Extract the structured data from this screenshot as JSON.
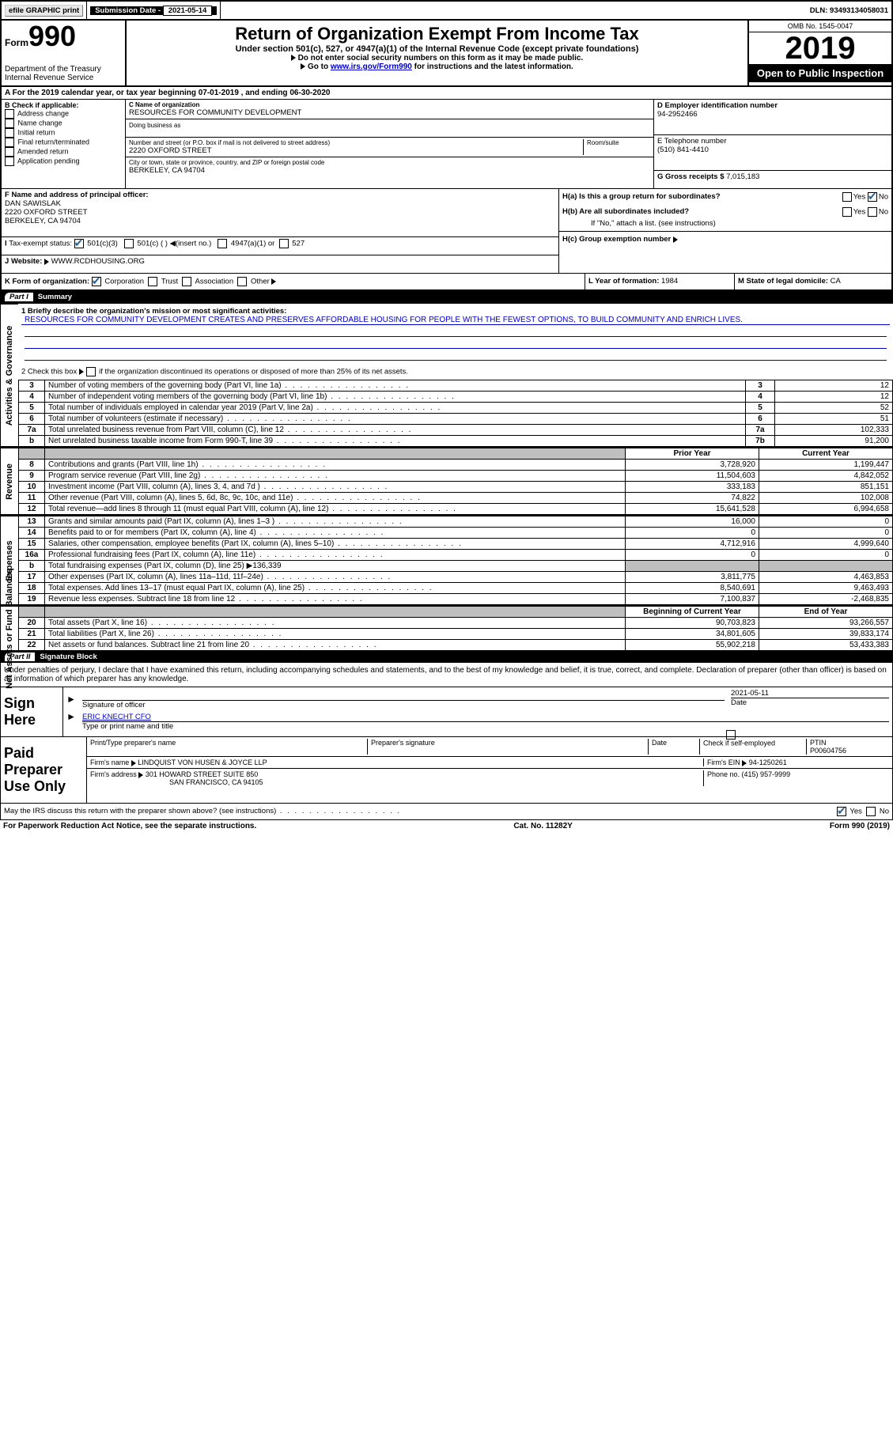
{
  "topbar": {
    "efile": "efile GRAPHIC print",
    "sub_label": "Submission Date - ",
    "sub_date": "2021-05-14",
    "dln": "DLN: 93493134058031"
  },
  "header": {
    "form_prefix": "Form",
    "form_num": "990",
    "dept": "Department of the Treasury\nInternal Revenue Service",
    "title": "Return of Organization Exempt From Income Tax",
    "subtitle": "Under section 501(c), 527, or 4947(a)(1) of the Internal Revenue Code (except private foundations)",
    "inst1": "Do not enter social security numbers on this form as it may be made public.",
    "inst2_a": "Go to ",
    "inst2_link": "www.irs.gov/Form990",
    "inst2_b": " for instructions and the latest information.",
    "omb": "OMB No. 1545-0047",
    "year": "2019",
    "open": "Open to Public Inspection"
  },
  "rowA": "A For the 2019 calendar year, or tax year beginning 07-01-2019    , and ending 06-30-2020",
  "colB": {
    "label": "B Check if applicable:",
    "opts": [
      "Address change",
      "Name change",
      "Initial return",
      "Final return/terminated",
      "Amended return",
      "Application pending"
    ]
  },
  "colC": {
    "name_label": "C Name of organization",
    "name": "RESOURCES FOR COMMUNITY DEVELOPMENT",
    "dba_label": "Doing business as",
    "addr_label": "Number and street (or P.O. box if mail is not delivered to street address)",
    "room_label": "Room/suite",
    "addr": "2220 OXFORD STREET",
    "city_label": "City or town, state or province, country, and ZIP or foreign postal code",
    "city": "BERKELEY, CA  94704"
  },
  "colD": {
    "label": "D Employer identification number",
    "val": "94-2952466"
  },
  "colE": {
    "label": "E Telephone number",
    "val": "(510) 841-4410"
  },
  "colG": {
    "label": "G Gross receipts $ ",
    "val": "7,015,183"
  },
  "rowF": {
    "label": "F  Name and address of principal officer:",
    "name": "DAN SAWISLAK",
    "addr1": "2220 OXFORD STREET",
    "addr2": "BERKELEY, CA  94704"
  },
  "rowH": {
    "a": "H(a)  Is this a group return for subordinates?",
    "b": "H(b)  Are all subordinates included?",
    "b_note": "If \"No,\" attach a list. (see instructions)",
    "c": "H(c)  Group exemption number "
  },
  "rowI": {
    "label": "Tax-exempt status:",
    "opts": [
      "501(c)(3)",
      "501(c) (   )  ",
      "(insert no.)",
      "4947(a)(1) or",
      "527"
    ]
  },
  "rowJ": {
    "label": "J",
    "web_label": "Website: ",
    "web": "WWW.RCDHOUSING.ORG"
  },
  "rowK": {
    "label": "K Form of organization:",
    "corp": "Corporation",
    "trust": "Trust",
    "assoc": "Association",
    "other": "Other"
  },
  "rowL": {
    "label": "L Year of formation: ",
    "val": "1984"
  },
  "rowM": {
    "label": "M State of legal domicile: ",
    "val": "CA"
  },
  "part1": {
    "label": "Part I",
    "title": "Summary",
    "q1": "1  Briefly describe the organization's mission or most significant activities:",
    "mission": "RESOURCES FOR COMMUNITY DEVELOPMENT CREATES AND PRESERVES AFFORDABLE HOUSING FOR PEOPLE WITH THE FEWEST OPTIONS, TO BUILD COMMUNITY AND ENRICH LIVES.",
    "q2a": "2   Check this box ",
    "q2b": " if the organization discontinued its operations or disposed of more than 25% of its net assets.",
    "lines_gov": [
      {
        "n": "3",
        "t": "Number of voting members of the governing body (Part VI, line 1a)",
        "box": "3",
        "v": "12"
      },
      {
        "n": "4",
        "t": "Number of independent voting members of the governing body (Part VI, line 1b)",
        "box": "4",
        "v": "12"
      },
      {
        "n": "5",
        "t": "Total number of individuals employed in calendar year 2019 (Part V, line 2a)",
        "box": "5",
        "v": "52"
      },
      {
        "n": "6",
        "t": "Total number of volunteers (estimate if necessary)",
        "box": "6",
        "v": "51"
      },
      {
        "n": "7a",
        "t": "Total unrelated business revenue from Part VIII, column (C), line 12",
        "box": "7a",
        "v": "102,333"
      },
      {
        "n": "b",
        "t": "Net unrelated business taxable income from Form 990-T, line 39",
        "box": "7b",
        "v": "91,200"
      }
    ],
    "py_h": "Prior Year",
    "cy_h": "Current Year",
    "lines_rev": [
      {
        "n": "8",
        "t": "Contributions and grants (Part VIII, line 1h)",
        "py": "3,728,920",
        "cy": "1,199,447"
      },
      {
        "n": "9",
        "t": "Program service revenue (Part VIII, line 2g)",
        "py": "11,504,603",
        "cy": "4,842,052"
      },
      {
        "n": "10",
        "t": "Investment income (Part VIII, column (A), lines 3, 4, and 7d )",
        "py": "333,183",
        "cy": "851,151"
      },
      {
        "n": "11",
        "t": "Other revenue (Part VIII, column (A), lines 5, 6d, 8c, 9c, 10c, and 11e)",
        "py": "74,822",
        "cy": "102,008"
      },
      {
        "n": "12",
        "t": "Total revenue—add lines 8 through 11 (must equal Part VIII, column (A), line 12)",
        "py": "15,641,528",
        "cy": "6,994,658"
      }
    ],
    "lines_exp": [
      {
        "n": "13",
        "t": "Grants and similar amounts paid (Part IX, column (A), lines 1–3 )",
        "py": "16,000",
        "cy": "0"
      },
      {
        "n": "14",
        "t": "Benefits paid to or for members (Part IX, column (A), line 4)",
        "py": "0",
        "cy": "0"
      },
      {
        "n": "15",
        "t": "Salaries, other compensation, employee benefits (Part IX, column (A), lines 5–10)",
        "py": "4,712,916",
        "cy": "4,999,640"
      },
      {
        "n": "16a",
        "t": "Professional fundraising fees (Part IX, column (A), line 11e)",
        "py": "0",
        "cy": "0"
      },
      {
        "n": "b",
        "t": "Total fundraising expenses (Part IX, column (D), line 25) ▶136,339",
        "py": "",
        "cy": "",
        "grey": true
      },
      {
        "n": "17",
        "t": "Other expenses (Part IX, column (A), lines 11a–11d, 11f–24e)",
        "py": "3,811,775",
        "cy": "4,463,853"
      },
      {
        "n": "18",
        "t": "Total expenses. Add lines 13–17 (must equal Part IX, column (A), line 25)",
        "py": "8,540,691",
        "cy": "9,463,493"
      },
      {
        "n": "19",
        "t": "Revenue less expenses. Subtract line 18 from line 12",
        "py": "7,100,837",
        "cy": "-2,468,835"
      }
    ],
    "boy_h": "Beginning of Current Year",
    "eoy_h": "End of Year",
    "lines_net": [
      {
        "n": "20",
        "t": "Total assets (Part X, line 16)",
        "py": "90,703,823",
        "cy": "93,266,557"
      },
      {
        "n": "21",
        "t": "Total liabilities (Part X, line 26)",
        "py": "34,801,605",
        "cy": "39,833,174"
      },
      {
        "n": "22",
        "t": "Net assets or fund balances. Subtract line 21 from line 20",
        "py": "55,902,218",
        "cy": "53,433,383"
      }
    ],
    "side_gov": "Activities & Governance",
    "side_rev": "Revenue",
    "side_exp": "Expenses",
    "side_net": "Net Assets or Fund Balances"
  },
  "part2": {
    "label": "Part II",
    "title": "Signature Block",
    "decl": "Under penalties of perjury, I declare that I have examined this return, including accompanying schedules and statements, and to the best of my knowledge and belief, it is true, correct, and complete. Declaration of preparer (other than officer) is based on all information of which preparer has any knowledge.",
    "sign_here": "Sign Here",
    "sig_officer": "Signature of officer",
    "sig_date": "2021-05-11",
    "date_label": "Date",
    "officer_name": "ERIC KNECHT CFO",
    "name_label": "Type or print name and title",
    "paid_prep": "Paid Preparer Use Only",
    "prep_name_label": "Print/Type preparer's name",
    "prep_sig_label": "Preparer's signature",
    "check_self": "Check          if self-employed",
    "ptin_label": "PTIN",
    "ptin": "P00604756",
    "firm_name_label": "Firm's name     ",
    "firm_name": "LINDQUIST VON HUSEN & JOYCE LLP",
    "firm_ein_label": "Firm's EIN ",
    "firm_ein": "94-1250261",
    "firm_addr_label": "Firm's address ",
    "firm_addr1": "301 HOWARD STREET SUITE 850",
    "firm_addr2": "SAN FRANCISCO, CA  94105",
    "phone_label": "Phone no. ",
    "phone": "(415) 957-9999",
    "may_irs": "May the IRS discuss this return with the preparer shown above? (see instructions)",
    "yes": "Yes",
    "no": "No"
  },
  "footer": {
    "pra": "For Paperwork Reduction Act Notice, see the separate instructions.",
    "cat": "Cat. No. 11282Y",
    "form": "Form 990 (2019)"
  }
}
